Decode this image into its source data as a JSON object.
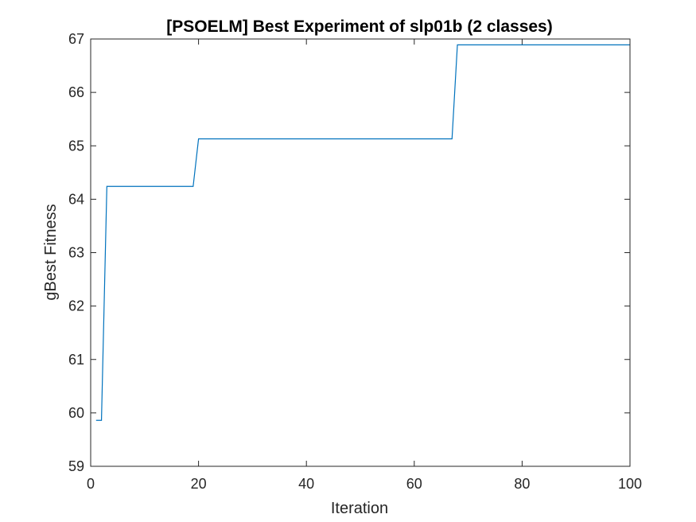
{
  "chart_data": {
    "type": "line",
    "title": "[PSOELM] Best Experiment of slp01b (2 classes)",
    "xlabel": "Iteration",
    "ylabel": "gBest Fitness",
    "xlim": [
      0,
      100
    ],
    "ylim": [
      59,
      67
    ],
    "xticks": [
      "0",
      "20",
      "40",
      "60",
      "80",
      "100"
    ],
    "yticks": [
      "59",
      "60",
      "61",
      "62",
      "63",
      "64",
      "65",
      "66",
      "67"
    ],
    "grid": false,
    "legend": "none",
    "series": [
      {
        "color": "#0072bd",
        "points": [
          [
            1,
            59.86
          ],
          [
            2,
            59.86
          ],
          [
            3,
            64.24
          ],
          [
            19,
            64.24
          ],
          [
            20,
            65.13
          ],
          [
            67,
            65.13
          ],
          [
            68,
            66.89
          ],
          [
            100,
            66.89
          ]
        ]
      }
    ]
  },
  "colors": {
    "line": "#0072bd",
    "axes": "#262626",
    "background": "#ffffff"
  }
}
